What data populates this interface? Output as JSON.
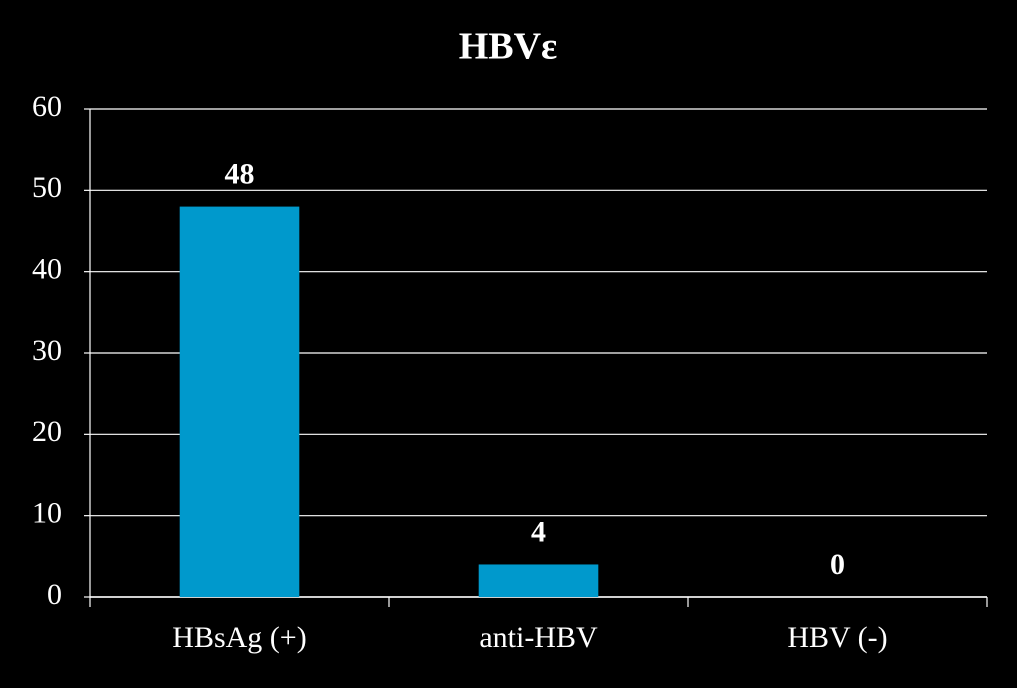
{
  "chart_data": {
    "type": "bar",
    "title": "HBVε",
    "categories": [
      "HBsAg (+)",
      "anti-HBV",
      "HBV (-)"
    ],
    "values": [
      48,
      4,
      0
    ],
    "color": "#0099cc",
    "ylim": [
      0,
      60
    ],
    "yticks": [
      0,
      10,
      20,
      30,
      40,
      50,
      60
    ],
    "grid": true
  }
}
